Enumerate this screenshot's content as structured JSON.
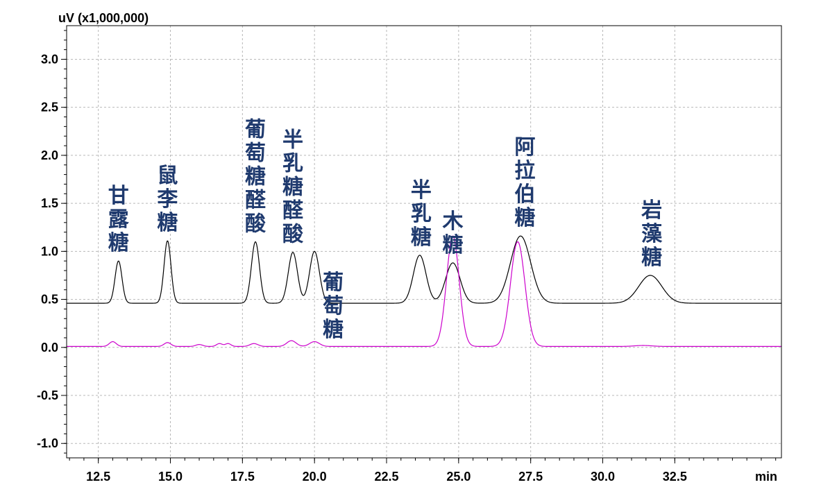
{
  "chart_data": {
    "type": "line",
    "title": "",
    "xlabel": "min",
    "ylabel": "uV (x1,000,000)",
    "xlim": [
      11.4,
      36.2
    ],
    "ylim": [
      -1.15,
      3.35
    ],
    "grid": true,
    "x_ticks": [
      12.5,
      15.0,
      17.5,
      20.0,
      22.5,
      25.0,
      27.5,
      30.0,
      32.5
    ],
    "x_tick_labels": [
      "12.5",
      "15.0",
      "17.5",
      "20.0",
      "22.5",
      "25.0",
      "27.5",
      "30.0",
      "32.5"
    ],
    "y_ticks": [
      3.0,
      2.5,
      2.0,
      1.5,
      1.0,
      0.5,
      0.0,
      -0.5,
      -1.0
    ],
    "y_tick_labels": [
      "3.0",
      "2.5",
      "2.0",
      "1.5",
      "1.0",
      "0.5",
      "0.0",
      "-0.5",
      "-1.0"
    ],
    "series": [
      {
        "color": "#000000",
        "baseline": 0.46,
        "peaks": [
          {
            "rt": 13.2,
            "height": 0.9,
            "width": 0.12
          },
          {
            "rt": 14.9,
            "height": 1.11,
            "width": 0.12
          },
          {
            "rt": 17.95,
            "height": 1.1,
            "width": 0.14
          },
          {
            "rt": 19.25,
            "height": 0.99,
            "width": 0.16
          },
          {
            "rt": 20.0,
            "height": 1.0,
            "width": 0.17
          },
          {
            "rt": 23.65,
            "height": 0.96,
            "width": 0.22
          },
          {
            "rt": 24.8,
            "height": 0.88,
            "width": 0.25
          },
          {
            "rt": 27.15,
            "height": 1.16,
            "width": 0.35
          },
          {
            "rt": 31.65,
            "height": 0.75,
            "width": 0.4
          }
        ]
      },
      {
        "color": "#cc00cc",
        "baseline": 0.01,
        "peaks": [
          {
            "rt": 13.0,
            "height": 0.06,
            "width": 0.12
          },
          {
            "rt": 14.9,
            "height": 0.05,
            "width": 0.12
          },
          {
            "rt": 16.0,
            "height": 0.03,
            "width": 0.12
          },
          {
            "rt": 16.7,
            "height": 0.04,
            "width": 0.1
          },
          {
            "rt": 17.0,
            "height": 0.04,
            "width": 0.1
          },
          {
            "rt": 17.9,
            "height": 0.04,
            "width": 0.14
          },
          {
            "rt": 19.2,
            "height": 0.07,
            "width": 0.16
          },
          {
            "rt": 20.0,
            "height": 0.06,
            "width": 0.17
          },
          {
            "rt": 24.8,
            "height": 1.16,
            "width": 0.22
          },
          {
            "rt": 27.05,
            "height": 1.1,
            "width": 0.25
          },
          {
            "rt": 31.4,
            "height": 0.02,
            "width": 0.3
          }
        ]
      }
    ],
    "annotations": [
      {
        "text": "甘露糖",
        "x": 13.2
      },
      {
        "text": "鼠李糖",
        "x": 14.9
      },
      {
        "text": "葡萄糖醛酸",
        "x": 17.95
      },
      {
        "text": "半乳糖醛酸",
        "x": 19.25
      },
      {
        "text": "葡萄糖",
        "x": 20.65
      },
      {
        "text": "半乳糖",
        "x": 23.7
      },
      {
        "text": "木糖",
        "x": 24.8
      },
      {
        "text": "阿拉伯糖",
        "x": 27.3
      },
      {
        "text": "岩藻糖",
        "x": 31.7
      }
    ]
  }
}
